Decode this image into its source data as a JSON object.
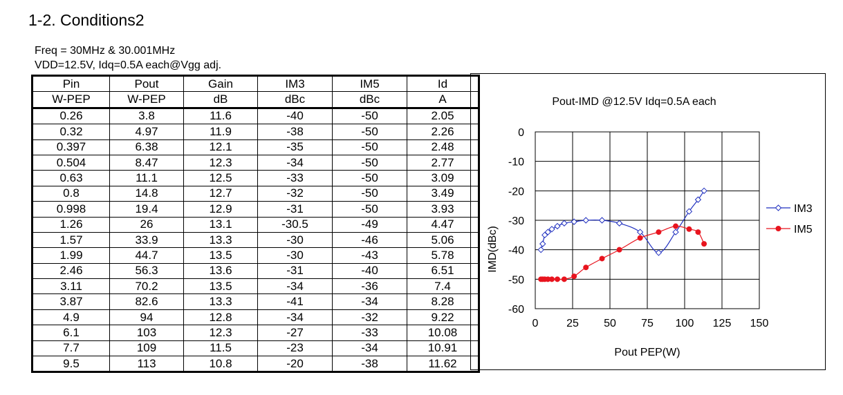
{
  "page": {
    "section_title": "1-2. Conditions2",
    "conditions": [
      "Freq = 30MHz & 30.001MHz",
      "VDD=12.5V, Idq=0.5A each@Vgg adj."
    ]
  },
  "table": {
    "headers": [
      "Pin",
      "Pout",
      "Gain",
      "IM3",
      "IM5",
      "Id"
    ],
    "units": [
      "W-PEP",
      "W-PEP",
      "dB",
      "dBc",
      "dBc",
      "A"
    ],
    "rows": [
      [
        "0.26",
        "3.8",
        "11.6",
        "-40",
        "-50",
        "2.05"
      ],
      [
        "0.32",
        "4.97",
        "11.9",
        "-38",
        "-50",
        "2.26"
      ],
      [
        "0.397",
        "6.38",
        "12.1",
        "-35",
        "-50",
        "2.48"
      ],
      [
        "0.504",
        "8.47",
        "12.3",
        "-34",
        "-50",
        "2.77"
      ],
      [
        "0.63",
        "11.1",
        "12.5",
        "-33",
        "-50",
        "3.09"
      ],
      [
        "0.8",
        "14.8",
        "12.7",
        "-32",
        "-50",
        "3.49"
      ],
      [
        "0.998",
        "19.4",
        "12.9",
        "-31",
        "-50",
        "3.93"
      ],
      [
        "1.26",
        "26",
        "13.1",
        "-30.5",
        "-49",
        "4.47"
      ],
      [
        "1.57",
        "33.9",
        "13.3",
        "-30",
        "-46",
        "5.06"
      ],
      [
        "1.99",
        "44.7",
        "13.5",
        "-30",
        "-43",
        "5.78"
      ],
      [
        "2.46",
        "56.3",
        "13.6",
        "-31",
        "-40",
        "6.51"
      ],
      [
        "3.11",
        "70.2",
        "13.5",
        "-34",
        "-36",
        "7.4"
      ],
      [
        "3.87",
        "82.6",
        "13.3",
        "-41",
        "-34",
        "8.28"
      ],
      [
        "4.9",
        "94",
        "12.8",
        "-34",
        "-32",
        "9.22"
      ],
      [
        "6.1",
        "103",
        "12.3",
        "-27",
        "-33",
        "10.08"
      ],
      [
        "7.7",
        "109",
        "11.5",
        "-23",
        "-34",
        "10.91"
      ],
      [
        "9.5",
        "113",
        "10.8",
        "-20",
        "-38",
        "11.62"
      ]
    ]
  },
  "chart_data": {
    "type": "line",
    "title": "Pout-IMD @12.5V Idq=0.5A each",
    "xlabel": "Pout PEP(W)",
    "ylabel": "IMD(dBc)",
    "xlim": [
      0,
      150
    ],
    "ylim": [
      -60,
      0
    ],
    "xticks": [
      "0",
      "25",
      "50",
      "75",
      "100",
      "125",
      "150"
    ],
    "yticks": [
      "0",
      "-10",
      "-20",
      "-30",
      "-40",
      "-50",
      "-60"
    ],
    "grid": true,
    "legend_position": "right",
    "x": [
      3.8,
      4.97,
      6.38,
      8.47,
      11.1,
      14.8,
      19.4,
      26,
      33.9,
      44.7,
      56.3,
      70.2,
      82.6,
      94,
      103,
      109,
      113
    ],
    "series": [
      {
        "name": "IM3",
        "color": "#1f2fbf",
        "marker": "open-diamond",
        "values": [
          -40,
          -38,
          -35,
          -34,
          -33,
          -32,
          -31,
          -30.5,
          -30,
          -30,
          -31,
          -34,
          -41,
          -34,
          -27,
          -23,
          -20
        ]
      },
      {
        "name": "IM5",
        "color": "#e8141e",
        "marker": "filled-circle",
        "values": [
          -50,
          -50,
          -50,
          -50,
          -50,
          -50,
          -50,
          -49,
          -46,
          -43,
          -40,
          -36,
          -34,
          -32,
          -33,
          -34,
          -38
        ]
      }
    ]
  }
}
